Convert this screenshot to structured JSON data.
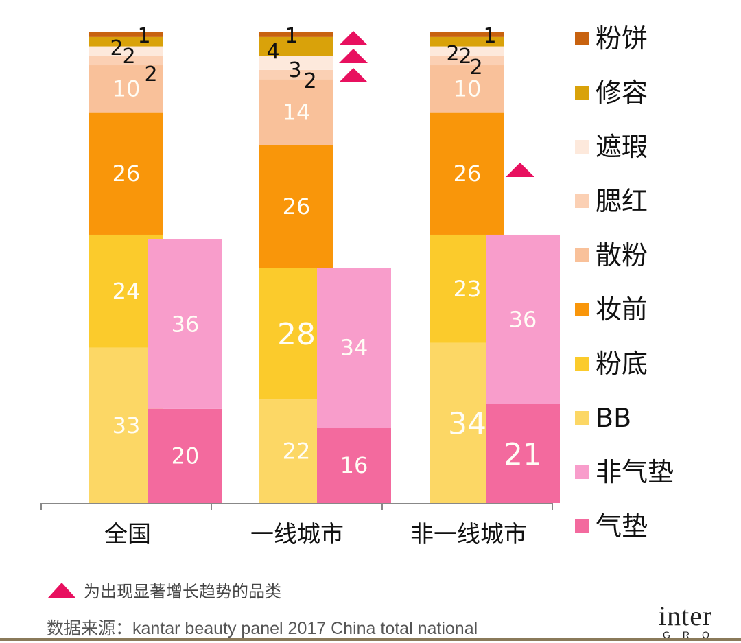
{
  "chart_data": {
    "type": "bar",
    "stacked": true,
    "categories": [
      "全国",
      "一线城市",
      "非一线城市"
    ],
    "groups": [
      {
        "category": "全国",
        "series": [
          {
            "name": "BB",
            "value": 33
          },
          {
            "name": "粉底",
            "value": 24
          },
          {
            "name": "妆前",
            "value": 26
          },
          {
            "name": "散粉",
            "value": 10
          },
          {
            "name": "腮红",
            "value": 2
          },
          {
            "name": "遮瑕",
            "value": 2
          },
          {
            "name": "修容",
            "value": 2
          },
          {
            "name": "粉饼",
            "value": 1
          }
        ],
        "cushion": [
          {
            "name": "气垫",
            "value": 20
          },
          {
            "name": "非气垫",
            "value": 36
          }
        ],
        "growth_markers": []
      },
      {
        "category": "一线城市",
        "series": [
          {
            "name": "BB",
            "value": 22
          },
          {
            "name": "粉底",
            "value": 28
          },
          {
            "name": "妆前",
            "value": 26
          },
          {
            "name": "散粉",
            "value": 14
          },
          {
            "name": "腮红",
            "value": 2
          },
          {
            "name": "遮瑕",
            "value": 3
          },
          {
            "name": "修容",
            "value": 4
          },
          {
            "name": "粉饼",
            "value": 1
          }
        ],
        "cushion": [
          {
            "name": "气垫",
            "value": 16
          },
          {
            "name": "非气垫",
            "value": 34
          }
        ],
        "growth_markers": [
          "修容",
          "遮瑕",
          "腮红"
        ]
      },
      {
        "category": "非一线城市",
        "series": [
          {
            "name": "BB",
            "value": 34
          },
          {
            "name": "粉底",
            "value": 23
          },
          {
            "name": "妆前",
            "value": 26
          },
          {
            "name": "散粉",
            "value": 10
          },
          {
            "name": "腮红",
            "value": 2
          },
          {
            "name": "遮瑕",
            "value": 2
          },
          {
            "name": "修容",
            "value": 2
          },
          {
            "name": "粉饼",
            "value": 1
          }
        ],
        "cushion": [
          {
            "name": "气垫",
            "value": 21
          },
          {
            "name": "非气垫",
            "value": 36
          }
        ],
        "growth_markers": [
          "妆前"
        ]
      }
    ],
    "legend": [
      {
        "name": "粉饼",
        "color": "#c8620f"
      },
      {
        "name": "修容",
        "color": "#d9a20a"
      },
      {
        "name": "遮瑕",
        "color": "#fde9dc"
      },
      {
        "name": "腮红",
        "color": "#fbd0b4"
      },
      {
        "name": "散粉",
        "color": "#f9c19a"
      },
      {
        "name": "妆前",
        "color": "#f9960a"
      },
      {
        "name": "粉底",
        "color": "#fbcb2c"
      },
      {
        "name": "BB",
        "color": "#fcd765"
      },
      {
        "name": "非气垫",
        "color": "#f89dcb"
      },
      {
        "name": "气垫",
        "color": "#f36a9e"
      }
    ],
    "legend_position": "right",
    "marker_color": "#e8105f",
    "grid": false
  },
  "footnote": {
    "text": "为出现显著增长趋势的品类"
  },
  "source": {
    "text": "数据来源：kantar beauty panel 2017 China total national"
  },
  "logo": {
    "text": "inter",
    "subtext": "GRO"
  }
}
